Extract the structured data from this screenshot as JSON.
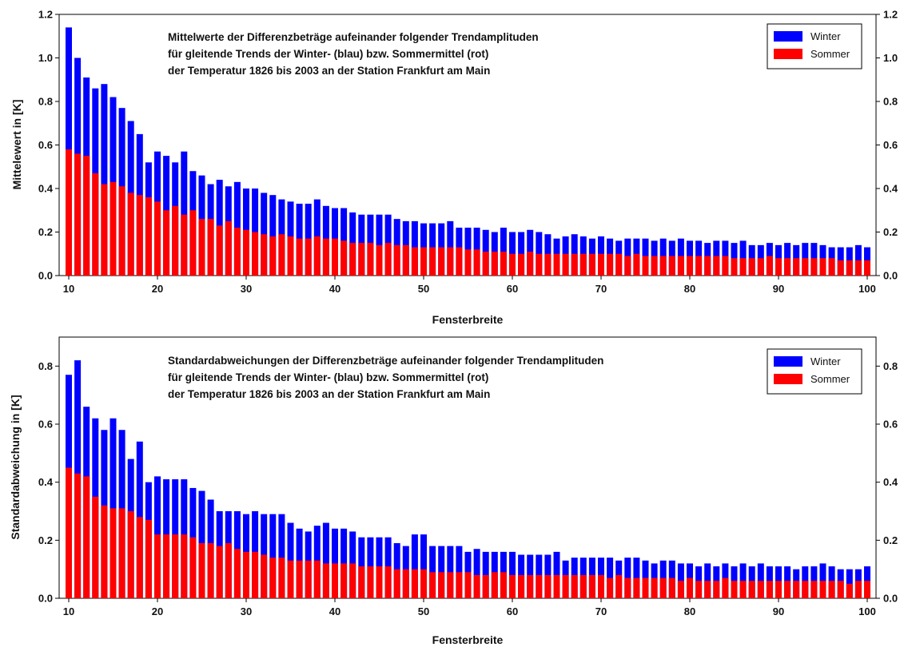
{
  "chart_data": [
    {
      "type": "bar",
      "title_lines": [
        "Mittelwerte der Differenzbeträge aufeinander folgender Trendamplituden",
        "für gleitende Trends der Winter- (blau) bzw. Sommermittel (rot)",
        "der Temperatur 1826 bis 2003 an der Station Frankfurt am Main"
      ],
      "xlabel": "Fensterbreite",
      "ylabel": "Mittelewert in [K]",
      "xlim": [
        10,
        100
      ],
      "ylim": [
        0,
        1.2
      ],
      "yticks": [
        0.0,
        0.2,
        0.4,
        0.6,
        0.8,
        1.0,
        1.2
      ],
      "yticks_right": true,
      "xticks": [
        10,
        20,
        30,
        40,
        50,
        60,
        70,
        80,
        90,
        100
      ],
      "legend": "top-right",
      "colors": {
        "Winter": "#0000ff",
        "Sommer": "#ff0000"
      },
      "x_start": 10,
      "series": [
        {
          "name": "Winter",
          "values": [
            1.14,
            1.0,
            0.91,
            0.86,
            0.88,
            0.82,
            0.77,
            0.71,
            0.65,
            0.52,
            0.57,
            0.55,
            0.52,
            0.57,
            0.48,
            0.46,
            0.42,
            0.44,
            0.41,
            0.43,
            0.4,
            0.4,
            0.38,
            0.37,
            0.35,
            0.34,
            0.33,
            0.33,
            0.35,
            0.32,
            0.31,
            0.31,
            0.29,
            0.28,
            0.28,
            0.28,
            0.28,
            0.26,
            0.25,
            0.25,
            0.24,
            0.24,
            0.24,
            0.25,
            0.22,
            0.22,
            0.22,
            0.21,
            0.2,
            0.22,
            0.2,
            0.2,
            0.21,
            0.2,
            0.19,
            0.17,
            0.18,
            0.19,
            0.18,
            0.17,
            0.18,
            0.17,
            0.16,
            0.17,
            0.17,
            0.17,
            0.16,
            0.17,
            0.16,
            0.17,
            0.16,
            0.16,
            0.15,
            0.16,
            0.16,
            0.15,
            0.16,
            0.14,
            0.14,
            0.15,
            0.14,
            0.15,
            0.14,
            0.15,
            0.15,
            0.14,
            0.13,
            0.13,
            0.13,
            0.14,
            0.13
          ]
        },
        {
          "name": "Sommer",
          "values": [
            0.58,
            0.56,
            0.55,
            0.47,
            0.42,
            0.43,
            0.41,
            0.38,
            0.37,
            0.36,
            0.34,
            0.3,
            0.32,
            0.28,
            0.3,
            0.26,
            0.26,
            0.23,
            0.25,
            0.22,
            0.21,
            0.2,
            0.19,
            0.18,
            0.19,
            0.18,
            0.17,
            0.17,
            0.18,
            0.17,
            0.17,
            0.16,
            0.15,
            0.15,
            0.15,
            0.14,
            0.15,
            0.14,
            0.14,
            0.13,
            0.13,
            0.13,
            0.13,
            0.13,
            0.13,
            0.12,
            0.12,
            0.11,
            0.11,
            0.11,
            0.1,
            0.1,
            0.11,
            0.1,
            0.1,
            0.1,
            0.1,
            0.1,
            0.1,
            0.1,
            0.1,
            0.1,
            0.1,
            0.09,
            0.1,
            0.09,
            0.09,
            0.09,
            0.09,
            0.09,
            0.09,
            0.09,
            0.09,
            0.09,
            0.09,
            0.08,
            0.08,
            0.08,
            0.08,
            0.09,
            0.08,
            0.08,
            0.08,
            0.08,
            0.08,
            0.08,
            0.08,
            0.07,
            0.07,
            0.07,
            0.07
          ]
        }
      ]
    },
    {
      "type": "bar",
      "title_lines": [
        "Standardabweichungen der Differenzbeträge aufeinander folgender Trendamplituden",
        "für gleitende Trends der Winter- (blau) bzw. Sommermittel (rot)",
        "der Temperatur 1826 bis 2003 an der Station Frankfurt am Main"
      ],
      "xlabel": "Fensterbreite",
      "ylabel": "Standardabweichung in [K]",
      "xlim": [
        10,
        100
      ],
      "ylim": [
        0,
        0.9
      ],
      "yticks": [
        0.0,
        0.2,
        0.4,
        0.6,
        0.8
      ],
      "yticks_right": true,
      "xticks": [
        10,
        20,
        30,
        40,
        50,
        60,
        70,
        80,
        90,
        100
      ],
      "legend": "top-right",
      "colors": {
        "Winter": "#0000ff",
        "Sommer": "#ff0000"
      },
      "x_start": 10,
      "series": [
        {
          "name": "Winter",
          "values": [
            0.77,
            0.82,
            0.66,
            0.62,
            0.58,
            0.62,
            0.58,
            0.48,
            0.54,
            0.4,
            0.42,
            0.41,
            0.41,
            0.41,
            0.38,
            0.37,
            0.34,
            0.3,
            0.3,
            0.3,
            0.29,
            0.3,
            0.29,
            0.29,
            0.29,
            0.26,
            0.24,
            0.23,
            0.25,
            0.26,
            0.24,
            0.24,
            0.23,
            0.21,
            0.21,
            0.21,
            0.21,
            0.19,
            0.18,
            0.22,
            0.22,
            0.18,
            0.18,
            0.18,
            0.18,
            0.16,
            0.17,
            0.16,
            0.16,
            0.16,
            0.16,
            0.15,
            0.15,
            0.15,
            0.15,
            0.16,
            0.13,
            0.14,
            0.14,
            0.14,
            0.14,
            0.14,
            0.13,
            0.14,
            0.14,
            0.13,
            0.12,
            0.13,
            0.13,
            0.12,
            0.12,
            0.11,
            0.12,
            0.11,
            0.12,
            0.11,
            0.12,
            0.11,
            0.12,
            0.11,
            0.11,
            0.11,
            0.1,
            0.11,
            0.11,
            0.12,
            0.11,
            0.1,
            0.1,
            0.1,
            0.11,
            0.1,
            0.12,
            0.1
          ]
        },
        {
          "name": "Sommer",
          "values": [
            0.45,
            0.43,
            0.42,
            0.35,
            0.32,
            0.31,
            0.31,
            0.3,
            0.28,
            0.27,
            0.22,
            0.22,
            0.22,
            0.22,
            0.21,
            0.19,
            0.19,
            0.18,
            0.19,
            0.17,
            0.16,
            0.16,
            0.15,
            0.14,
            0.14,
            0.13,
            0.13,
            0.13,
            0.13,
            0.12,
            0.12,
            0.12,
            0.12,
            0.11,
            0.11,
            0.11,
            0.11,
            0.1,
            0.1,
            0.1,
            0.1,
            0.09,
            0.09,
            0.09,
            0.09,
            0.09,
            0.08,
            0.08,
            0.09,
            0.09,
            0.08,
            0.08,
            0.08,
            0.08,
            0.08,
            0.08,
            0.08,
            0.08,
            0.08,
            0.08,
            0.08,
            0.07,
            0.08,
            0.07,
            0.07,
            0.07,
            0.07,
            0.07,
            0.07,
            0.06,
            0.07,
            0.06,
            0.06,
            0.06,
            0.07,
            0.06,
            0.06,
            0.06,
            0.06,
            0.06,
            0.06,
            0.06,
            0.06,
            0.06,
            0.06,
            0.06,
            0.06,
            0.06,
            0.05,
            0.06,
            0.06,
            0.06,
            0.06,
            0.06
          ]
        }
      ]
    }
  ]
}
